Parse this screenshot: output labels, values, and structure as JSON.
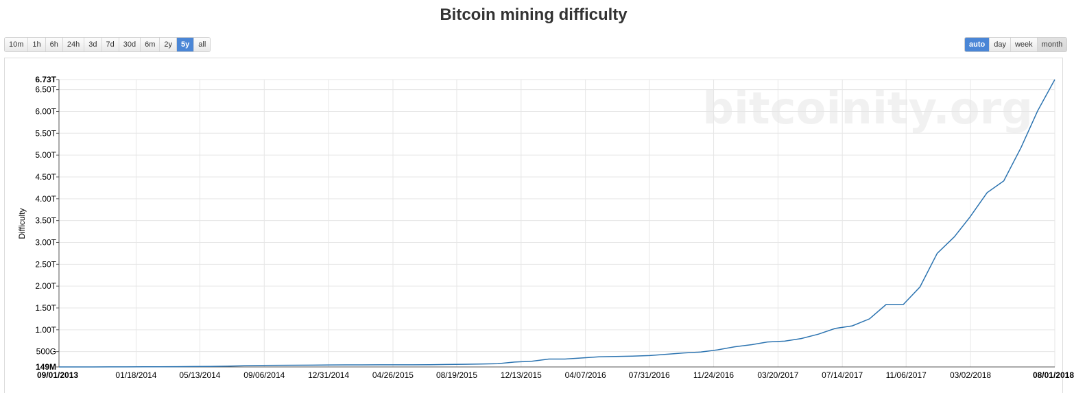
{
  "title": "Bitcoin mining difficulty",
  "range_buttons": [
    {
      "label": "10m",
      "active": false
    },
    {
      "label": "1h",
      "active": false
    },
    {
      "label": "6h",
      "active": false
    },
    {
      "label": "24h",
      "active": false
    },
    {
      "label": "3d",
      "active": false
    },
    {
      "label": "7d",
      "active": false
    },
    {
      "label": "30d",
      "active": false
    },
    {
      "label": "6m",
      "active": false
    },
    {
      "label": "2y",
      "active": false
    },
    {
      "label": "5y",
      "active": true
    },
    {
      "label": "all",
      "active": false
    }
  ],
  "period_buttons": [
    {
      "label": "auto",
      "active": true
    },
    {
      "label": "day",
      "active": false
    },
    {
      "label": "week",
      "active": false
    },
    {
      "label": "month",
      "active": false,
      "pressed": true
    }
  ],
  "watermark": "bitcoinity.org",
  "colors": {
    "line": "#2b73b0",
    "grid": "#e6e6e6",
    "active_button": "#4a86d6"
  },
  "chart_data": {
    "type": "line",
    "ylabel": "Difficulty",
    "xlabel": "",
    "y_ticks": [
      {
        "value": 0.149,
        "label": "149M",
        "bold": true
      },
      {
        "value": 0.5,
        "label": "500G"
      },
      {
        "value": 1.0,
        "label": "1.00T"
      },
      {
        "value": 1.5,
        "label": "1.50T"
      },
      {
        "value": 2.0,
        "label": "2.00T"
      },
      {
        "value": 2.5,
        "label": "2.50T"
      },
      {
        "value": 3.0,
        "label": "3.00T"
      },
      {
        "value": 3.5,
        "label": "3.50T"
      },
      {
        "value": 4.0,
        "label": "4.00T"
      },
      {
        "value": 4.5,
        "label": "4.50T"
      },
      {
        "value": 5.0,
        "label": "5.00T"
      },
      {
        "value": 5.5,
        "label": "5.50T"
      },
      {
        "value": 6.0,
        "label": "6.00T"
      },
      {
        "value": 6.5,
        "label": "6.50T"
      },
      {
        "value": 6.73,
        "label": "6.73T",
        "bold": true
      }
    ],
    "ylim": [
      0.149,
      6.73
    ],
    "y_unit": "T",
    "x_ticks": [
      {
        "date": "2013-09-01",
        "label": "09/01/2013",
        "bold": true
      },
      {
        "date": "2014-01-18",
        "label": "01/18/2014"
      },
      {
        "date": "2014-05-13",
        "label": "05/13/2014"
      },
      {
        "date": "2014-09-06",
        "label": "09/06/2014"
      },
      {
        "date": "2014-12-31",
        "label": "12/31/2014"
      },
      {
        "date": "2015-04-26",
        "label": "04/26/2015"
      },
      {
        "date": "2015-08-19",
        "label": "08/19/2015"
      },
      {
        "date": "2015-12-13",
        "label": "12/13/2015"
      },
      {
        "date": "2016-04-07",
        "label": "04/07/2016"
      },
      {
        "date": "2016-07-31",
        "label": "07/31/2016"
      },
      {
        "date": "2016-11-24",
        "label": "11/24/2016"
      },
      {
        "date": "2017-03-20",
        "label": "03/20/2017"
      },
      {
        "date": "2017-07-14",
        "label": "07/14/2017"
      },
      {
        "date": "2017-11-06",
        "label": "11/06/2017"
      },
      {
        "date": "2018-03-02",
        "label": "03/02/2018"
      },
      {
        "date": "2018-08-01",
        "label": "08/01/2018",
        "bold": true
      }
    ],
    "xlim": [
      "2013-09-01",
      "2018-08-01"
    ],
    "grid": true,
    "legend": "none",
    "series": [
      {
        "points": [
          [
            "2013-09-01",
            0.149
          ],
          [
            "2013-10-01",
            0.149
          ],
          [
            "2013-11-01",
            0.149
          ],
          [
            "2013-12-01",
            0.15
          ],
          [
            "2014-01-01",
            0.151
          ],
          [
            "2014-02-01",
            0.152
          ],
          [
            "2014-03-01",
            0.153
          ],
          [
            "2014-04-01",
            0.155
          ],
          [
            "2014-05-01",
            0.158
          ],
          [
            "2014-06-01",
            0.162
          ],
          [
            "2014-07-01",
            0.167
          ],
          [
            "2014-08-01",
            0.175
          ],
          [
            "2014-09-01",
            0.183
          ],
          [
            "2014-10-01",
            0.186
          ],
          [
            "2014-11-01",
            0.188
          ],
          [
            "2014-12-01",
            0.19
          ],
          [
            "2015-01-01",
            0.194
          ],
          [
            "2015-02-01",
            0.196
          ],
          [
            "2015-03-01",
            0.196
          ],
          [
            "2015-04-01",
            0.197
          ],
          [
            "2015-05-01",
            0.197
          ],
          [
            "2015-06-01",
            0.198
          ],
          [
            "2015-07-01",
            0.2
          ],
          [
            "2015-08-01",
            0.205
          ],
          [
            "2015-09-01",
            0.21
          ],
          [
            "2015-10-01",
            0.215
          ],
          [
            "2015-11-01",
            0.225
          ],
          [
            "2015-12-01",
            0.26
          ],
          [
            "2016-01-01",
            0.28
          ],
          [
            "2016-02-01",
            0.33
          ],
          [
            "2016-03-01",
            0.33
          ],
          [
            "2016-04-01",
            0.355
          ],
          [
            "2016-05-01",
            0.38
          ],
          [
            "2016-06-01",
            0.39
          ],
          [
            "2016-07-01",
            0.395
          ],
          [
            "2016-08-01",
            0.41
          ],
          [
            "2016-09-01",
            0.44
          ],
          [
            "2016-10-01",
            0.47
          ],
          [
            "2016-11-01",
            0.49
          ],
          [
            "2016-12-01",
            0.54
          ],
          [
            "2017-01-01",
            0.61
          ],
          [
            "2017-02-01",
            0.66
          ],
          [
            "2017-03-01",
            0.72
          ],
          [
            "2017-04-01",
            0.74
          ],
          [
            "2017-05-01",
            0.8
          ],
          [
            "2017-06-01",
            0.9
          ],
          [
            "2017-07-01",
            1.03
          ],
          [
            "2017-08-01",
            1.09
          ],
          [
            "2017-09-01",
            1.25
          ],
          [
            "2017-10-01",
            1.58
          ],
          [
            "2017-11-01",
            1.58
          ],
          [
            "2017-12-01",
            1.98
          ],
          [
            "2018-01-01",
            2.75
          ],
          [
            "2018-02-01",
            3.13
          ],
          [
            "2018-03-01",
            3.58
          ],
          [
            "2018-04-01",
            4.14
          ],
          [
            "2018-05-01",
            4.41
          ],
          [
            "2018-06-01",
            5.17
          ],
          [
            "2018-07-01",
            6.01
          ],
          [
            "2018-08-01",
            6.73
          ]
        ]
      }
    ]
  }
}
